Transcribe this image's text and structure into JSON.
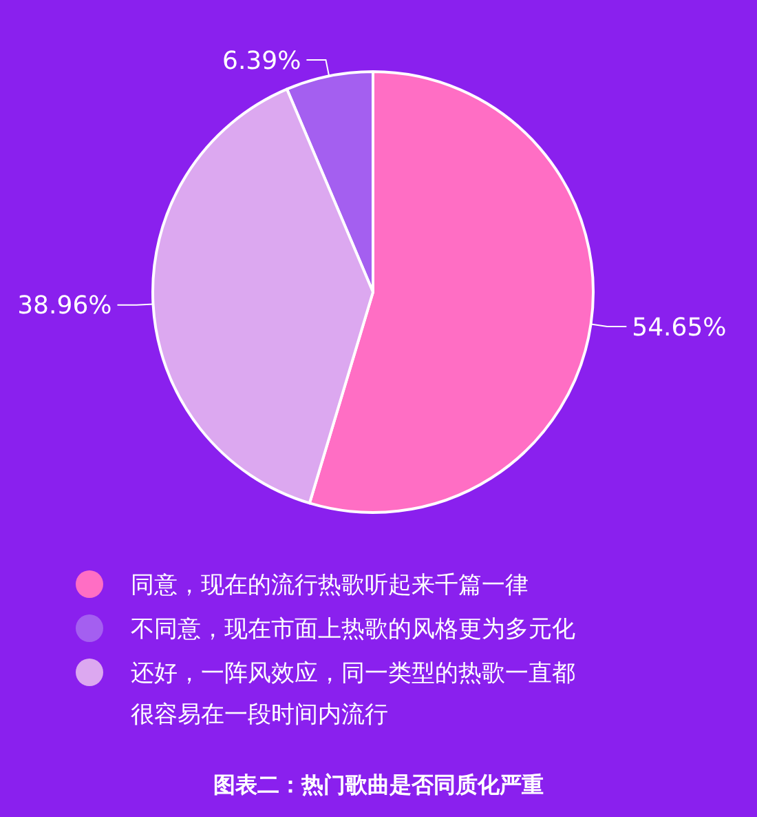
{
  "chart_data": {
    "type": "pie",
    "title": "图表二：热门歌曲是否同质化严重",
    "categories": [
      "同意，现在的流行热歌听起来千篇一律",
      "不同意，现在市面上热歌的风格更为多元化",
      "还好，一阵风效应，同一类型的热歌一直都很容易在一段时间内流行"
    ],
    "values": [
      54.65,
      6.39,
      38.96
    ],
    "colors": [
      "#ff6ec4",
      "#a45ff0",
      "#dca8f0"
    ],
    "value_labels": [
      "54.65%",
      "6.39%",
      "38.96%"
    ],
    "legend": "bottom"
  }
}
